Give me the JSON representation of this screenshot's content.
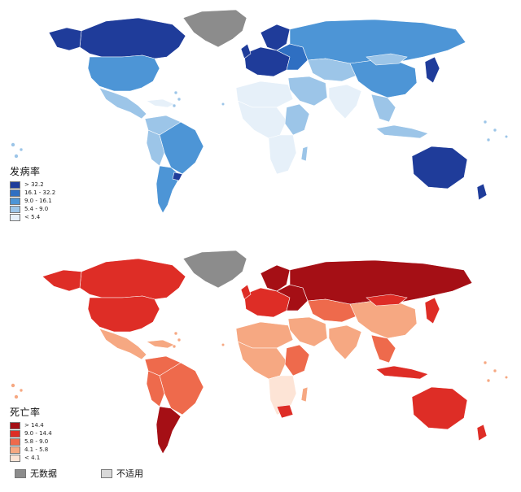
{
  "maps": [
    {
      "id": "incidence",
      "legend_title": "发病率",
      "classes": [
        {
          "label": "> 32.2",
          "color": "#1f3c9a"
        },
        {
          "label": "16.1 - 32.2",
          "color": "#2f6fc2"
        },
        {
          "label": "9.0 - 16.1",
          "color": "#4d95d6"
        },
        {
          "label": "5.4 - 9.0",
          "color": "#9cc5e8"
        },
        {
          "label": "< 5.4",
          "color": "#e6f0f9"
        }
      ]
    },
    {
      "id": "mortality",
      "legend_title": "死亡率",
      "classes": [
        {
          "label": "> 14.4",
          "color": "#a50f15"
        },
        {
          "label": "9.0 - 14.4",
          "color": "#de2d26"
        },
        {
          "label": "5.8 - 9.0",
          "color": "#ee6a4c"
        },
        {
          "label": "4.1 - 5.8",
          "color": "#f6a882"
        },
        {
          "label": "< 4.1",
          "color": "#fde4d6"
        }
      ]
    }
  ],
  "footer": {
    "no_data": {
      "label": "无数据",
      "color": "#8c8c8c"
    },
    "not_applicable": {
      "label": "不适用",
      "color": "#d9d9d9"
    }
  }
}
